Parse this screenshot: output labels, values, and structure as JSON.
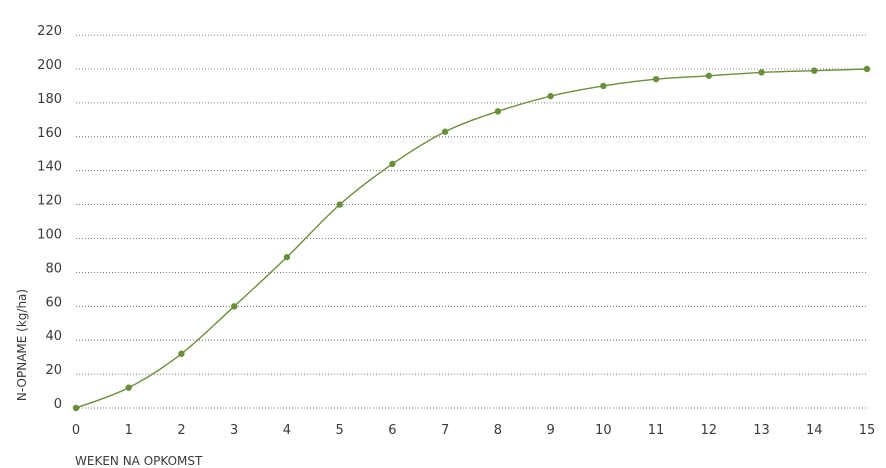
{
  "chart_data": {
    "type": "line",
    "title": "",
    "xlabel": "WEKEN NA OPKOMST",
    "ylabel": "N-OPNAME (kg/ha)",
    "xlim": [
      0,
      15
    ],
    "ylim": [
      0,
      230
    ],
    "x_ticks": [
      0,
      1,
      2,
      3,
      4,
      5,
      6,
      7,
      8,
      9,
      10,
      11,
      12,
      13,
      14,
      15
    ],
    "y_ticks": [
      0,
      20,
      40,
      60,
      80,
      100,
      120,
      140,
      160,
      180,
      200,
      220
    ],
    "grid": "horizontal-dotted",
    "legend": "none",
    "series": [
      {
        "x": [
          0,
          1,
          2,
          3,
          4,
          5,
          6,
          7,
          8,
          9,
          10,
          11,
          12,
          13,
          14,
          15
        ],
        "y": [
          0,
          12,
          32,
          60,
          89,
          120,
          144,
          163,
          175,
          184,
          190,
          194,
          196,
          198,
          199,
          200
        ],
        "color": "#6a8f3a"
      }
    ],
    "colors": {
      "line": "#6a8f3a",
      "marker": "#6a8f3a",
      "grid": "#555555",
      "text": "#3a3a3a"
    }
  }
}
